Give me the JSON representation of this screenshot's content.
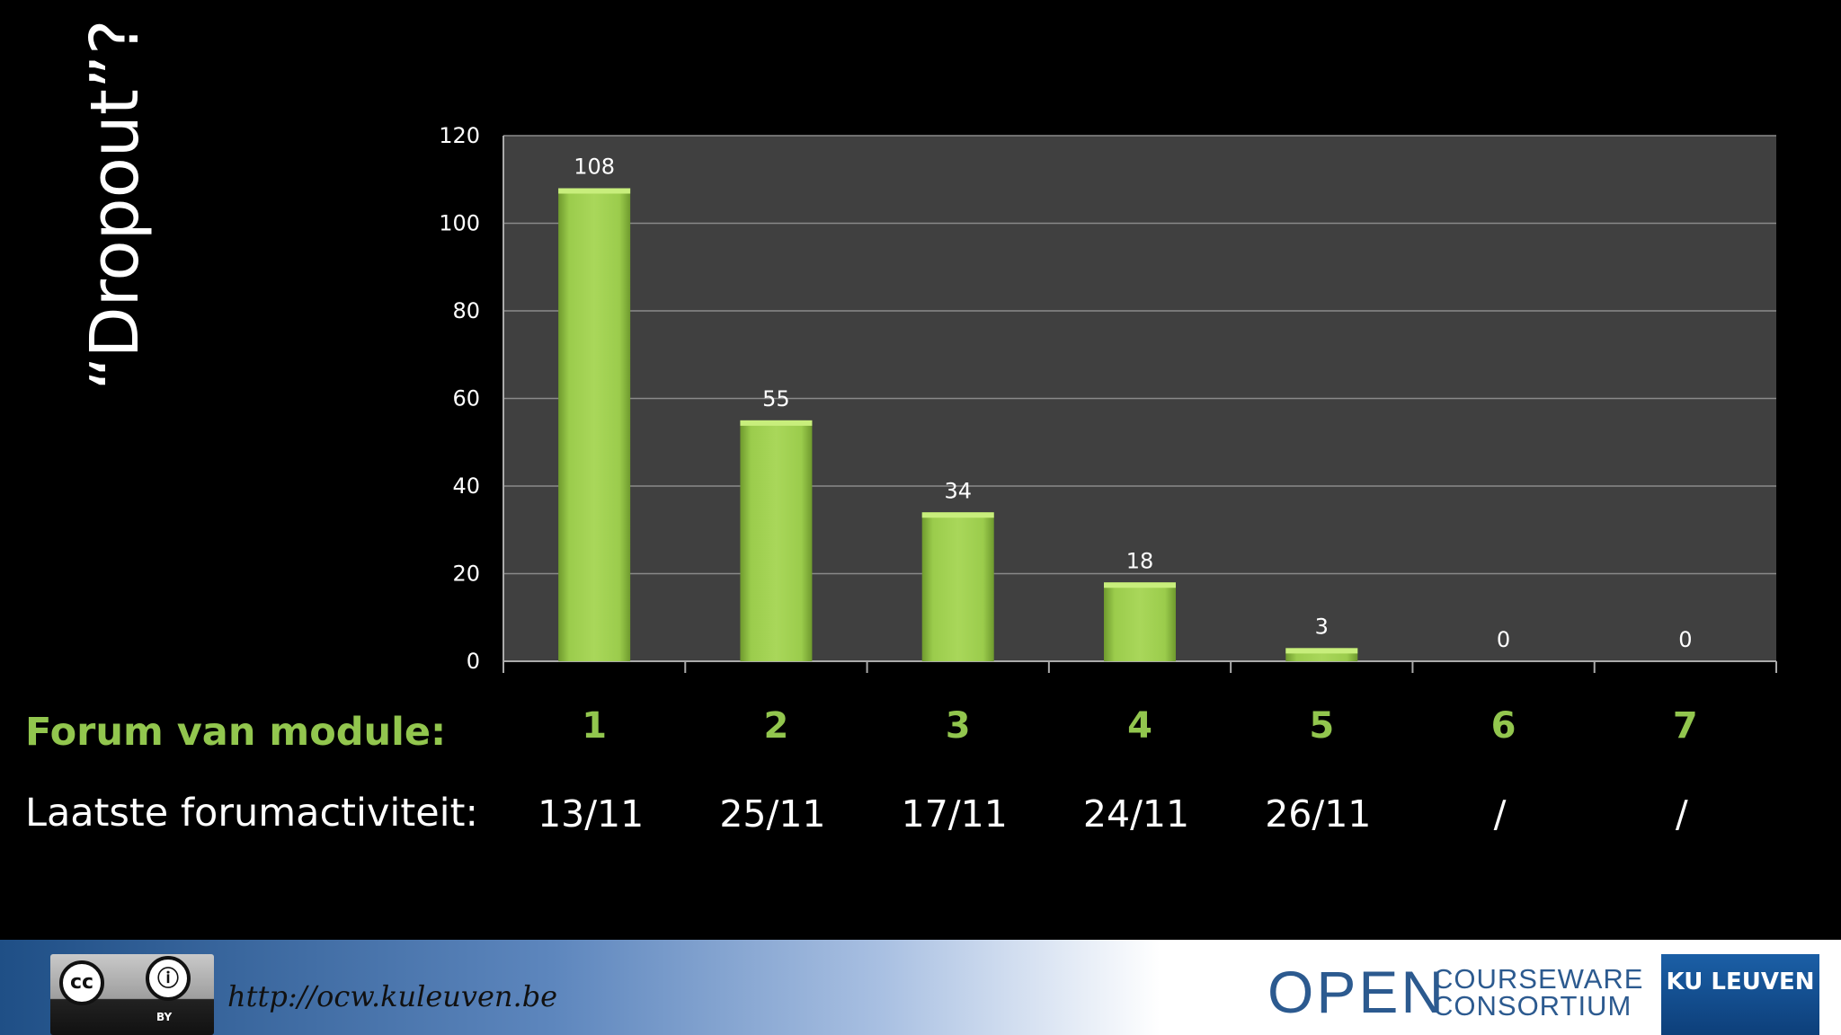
{
  "slide": {
    "title": "“Dropout”?"
  },
  "chart_data": {
    "type": "bar",
    "categories": [
      "1",
      "2",
      "3",
      "4",
      "5",
      "6",
      "7"
    ],
    "values": [
      108,
      55,
      34,
      18,
      3,
      0,
      0
    ],
    "data_labels": [
      "108",
      "55",
      "34",
      "18",
      "3",
      "0",
      "0"
    ],
    "ylim": [
      0,
      120
    ],
    "yticks": [
      0,
      20,
      40,
      60,
      80,
      100,
      120
    ],
    "grid": true,
    "bar_color": "#9bcc4c",
    "plot_background": "#404040"
  },
  "table": {
    "module_label": "Forum van module:",
    "activity_label": "Laatste forumactiviteit:",
    "modules": [
      "1",
      "2",
      "3",
      "4",
      "5",
      "6",
      "7"
    ],
    "last_activity": [
      "13/11",
      "25/11",
      "17/11",
      "24/11",
      "26/11",
      "/",
      "/"
    ]
  },
  "footer": {
    "url": "http://ocw.kuleuven.be",
    "license_badge": {
      "cc": "cc",
      "by": "BY"
    },
    "ocw_logo": {
      "open": "OPEN",
      "courseware": "COURSEWARE",
      "consortium": "CONSORTIUM"
    },
    "kul_logo": "KU LEUVEN"
  }
}
